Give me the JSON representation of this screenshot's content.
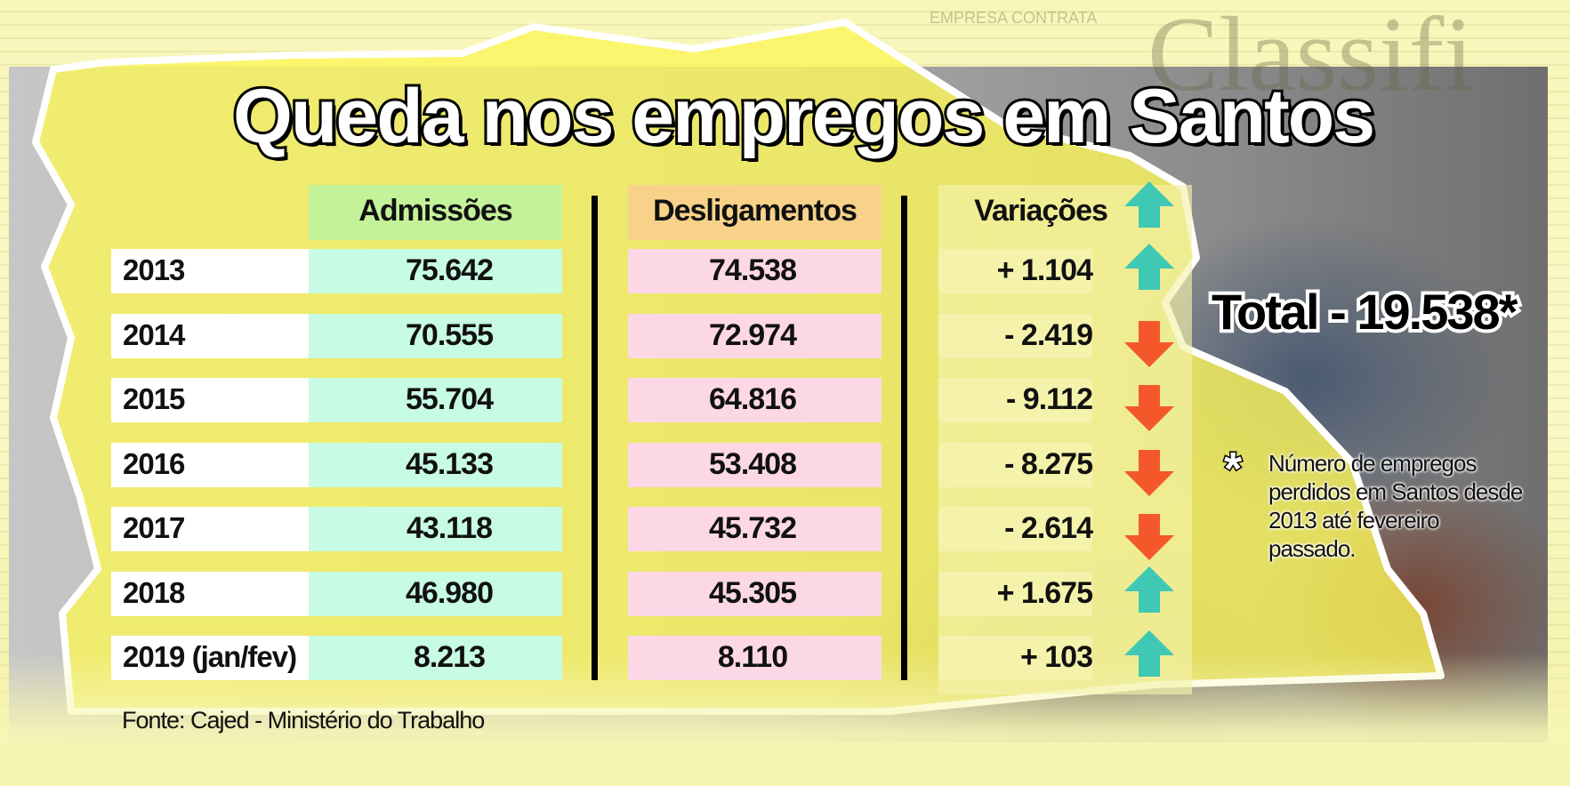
{
  "title": "Queda nos empregos em Santos",
  "chart_data": {
    "type": "table",
    "columns": [
      "Admissões",
      "Desligamentos",
      "Variações"
    ],
    "rows": [
      {
        "label": "2013",
        "admissoes": "75.642",
        "desligamentos": "74.538",
        "variacao": "+ 1.104",
        "trend": "up"
      },
      {
        "label": "2014",
        "admissoes": "70.555",
        "desligamentos": "72.974",
        "variacao": "- 2.419",
        "trend": "down"
      },
      {
        "label": "2015",
        "admissoes": "55.704",
        "desligamentos": "64.816",
        "variacao": "- 9.112",
        "trend": "down"
      },
      {
        "label": "2016",
        "admissoes": "45.133",
        "desligamentos": "53.408",
        "variacao": "- 8.275",
        "trend": "down"
      },
      {
        "label": "2017",
        "admissoes": "43.118",
        "desligamentos": "45.732",
        "variacao": "- 2.614",
        "trend": "down"
      },
      {
        "label": "2018",
        "admissoes": "46.980",
        "desligamentos": "45.305",
        "variacao": "+ 1.675",
        "trend": "up"
      },
      {
        "label": "2019 (jan/fev)",
        "admissoes": "8.213",
        "desligamentos": "8.110",
        "variacao": "+ 103",
        "trend": "up"
      }
    ]
  },
  "total": "Total  - 19.538*",
  "footnote": {
    "marker": "*",
    "text": "Número de empregos perdidos em Santos desde 2013 até fevereiro passado."
  },
  "source": "Fonte: Cajed - Ministério do Trabalho",
  "colors": {
    "admissoes_bg": "#c8fbe4",
    "admissoes_header": "#c3f29a",
    "desligamentos_bg": "#fcd8e6",
    "desligamentos_header": "#f7d288",
    "variacoes_bg": "#f4f2ab",
    "arrow_up": "#3fc8b4",
    "arrow_down": "#f4582a"
  },
  "background_text": {
    "classified": "Classifi",
    "empresa": "EMPRESA CONTRATA"
  }
}
